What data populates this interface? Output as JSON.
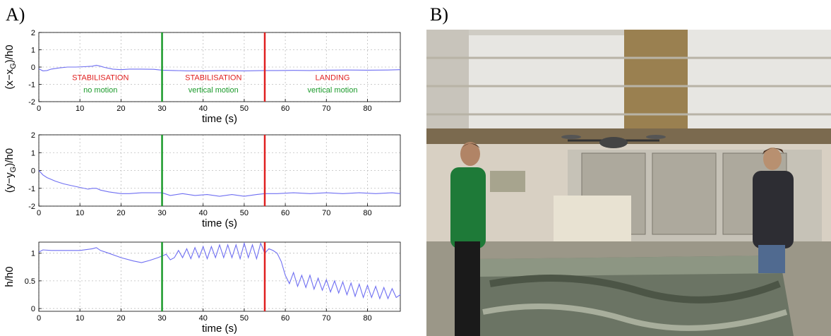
{
  "panels": {
    "a_label": "A)",
    "b_label": "B)"
  },
  "colors": {
    "signal": "#6f6ff2",
    "green_line": "#1a9a2a",
    "red_line": "#e02020",
    "phase_red": "#e02020",
    "phase_green": "#1a9a2a",
    "grid": "#bdbdbd"
  },
  "photo": {
    "description_icon": "photo-quadrotor-hall-icon"
  },
  "chart_data": [
    {
      "type": "line",
      "ylabel": "(x−x_G)/h0",
      "xlabel": "time (s)",
      "xlim": [
        0,
        88
      ],
      "ylim": [
        -2,
        2
      ],
      "xticks": [
        0,
        10,
        20,
        30,
        40,
        50,
        60,
        70,
        80
      ],
      "yticks": [
        -2,
        -1,
        0,
        1,
        2
      ],
      "grid": true,
      "vlines": [
        {
          "x": 30,
          "color": "green"
        },
        {
          "x": 55,
          "color": "red"
        }
      ],
      "annotations": [
        {
          "text": "STABILISATION",
          "color": "red",
          "x": 15,
          "y": -0.6
        },
        {
          "text": "no motion",
          "color": "green",
          "x": 15,
          "y": -1.3
        },
        {
          "text": "STABILISATION",
          "color": "red",
          "x": 42.5,
          "y": -0.6
        },
        {
          "text": "vertical motion",
          "color": "green",
          "x": 42.5,
          "y": -1.3
        },
        {
          "text": "LANDING",
          "color": "red",
          "x": 71.5,
          "y": -0.6
        },
        {
          "text": "vertical motion",
          "color": "green",
          "x": 71.5,
          "y": -1.3
        }
      ],
      "series": [
        {
          "x": [
            0,
            1,
            2,
            3,
            5,
            7,
            9,
            11,
            13,
            14,
            15,
            16,
            18,
            20,
            22,
            25,
            28,
            30,
            33,
            36,
            40,
            45,
            50,
            55,
            58,
            62,
            66,
            70,
            75,
            80,
            85,
            88
          ],
          "y": [
            -0.1,
            -0.22,
            -0.2,
            -0.12,
            -0.05,
            0.0,
            0.0,
            0.02,
            0.05,
            0.1,
            0.05,
            -0.02,
            -0.12,
            -0.15,
            -0.12,
            -0.12,
            -0.13,
            -0.18,
            -0.2,
            -0.22,
            -0.22,
            -0.2,
            -0.22,
            -0.2,
            -0.2,
            -0.19,
            -0.2,
            -0.18,
            -0.17,
            -0.18,
            -0.17,
            -0.15
          ]
        }
      ]
    },
    {
      "type": "line",
      "ylabel": "(y−y_G)/h0",
      "xlabel": "time (s)",
      "xlim": [
        0,
        88
      ],
      "ylim": [
        -2,
        2
      ],
      "xticks": [
        0,
        10,
        20,
        30,
        40,
        50,
        60,
        70,
        80
      ],
      "yticks": [
        -2,
        -1,
        0,
        1,
        2
      ],
      "grid": true,
      "vlines": [
        {
          "x": 30,
          "color": "green"
        },
        {
          "x": 55,
          "color": "red"
        }
      ],
      "series": [
        {
          "x": [
            0,
            1,
            2,
            4,
            6,
            8,
            10,
            12,
            13,
            14,
            15,
            17,
            20,
            22,
            25,
            28,
            30,
            32,
            35,
            38,
            41,
            44,
            47,
            50,
            53,
            55,
            58,
            62,
            66,
            70,
            74,
            78,
            82,
            86,
            88
          ],
          "y": [
            0.0,
            -0.25,
            -0.4,
            -0.6,
            -0.75,
            -0.85,
            -0.95,
            -1.05,
            -1.0,
            -1.0,
            -1.1,
            -1.2,
            -1.3,
            -1.3,
            -1.25,
            -1.25,
            -1.25,
            -1.4,
            -1.3,
            -1.4,
            -1.35,
            -1.45,
            -1.35,
            -1.45,
            -1.35,
            -1.3,
            -1.3,
            -1.25,
            -1.3,
            -1.25,
            -1.3,
            -1.25,
            -1.3,
            -1.25,
            -1.3
          ]
        }
      ]
    },
    {
      "type": "line",
      "ylabel": "h/h0",
      "xlabel": "time (s)",
      "xlim": [
        0,
        88
      ],
      "ylim": [
        -0.05,
        1.2
      ],
      "xticks": [
        0,
        10,
        20,
        30,
        40,
        50,
        60,
        70,
        80
      ],
      "yticks": [
        0,
        0.5,
        1
      ],
      "grid": true,
      "vlines": [
        {
          "x": 30,
          "color": "green"
        },
        {
          "x": 55,
          "color": "red"
        }
      ],
      "series": [
        {
          "x": [
            0,
            1,
            3,
            6,
            10,
            13,
            14,
            15,
            17,
            20,
            23,
            25,
            27,
            29,
            30,
            31,
            32,
            33,
            34,
            35,
            36,
            37,
            38,
            39,
            40,
            41,
            42,
            43,
            44,
            45,
            46,
            47,
            48,
            49,
            50,
            51,
            52,
            53,
            54,
            55,
            56,
            57,
            58,
            59,
            60,
            61,
            62,
            63,
            64,
            65,
            66,
            67,
            68,
            69,
            70,
            71,
            72,
            73,
            74,
            75,
            76,
            77,
            78,
            79,
            80,
            81,
            82,
            83,
            84,
            85,
            86,
            87,
            88
          ],
          "y": [
            1.02,
            1.06,
            1.05,
            1.05,
            1.05,
            1.08,
            1.1,
            1.05,
            1.0,
            0.92,
            0.86,
            0.83,
            0.87,
            0.92,
            0.95,
            0.98,
            0.88,
            0.92,
            1.05,
            0.92,
            1.08,
            0.9,
            1.1,
            0.92,
            1.12,
            0.9,
            1.12,
            0.92,
            1.15,
            0.92,
            1.15,
            0.92,
            1.15,
            0.9,
            1.18,
            0.92,
            1.15,
            0.9,
            1.18,
            1.0,
            1.08,
            1.05,
            1.0,
            0.85,
            0.6,
            0.45,
            0.65,
            0.4,
            0.6,
            0.38,
            0.6,
            0.35,
            0.55,
            0.33,
            0.52,
            0.3,
            0.5,
            0.28,
            0.48,
            0.25,
            0.46,
            0.22,
            0.44,
            0.2,
            0.42,
            0.2,
            0.4,
            0.18,
            0.38,
            0.18,
            0.36,
            0.2,
            0.25
          ]
        }
      ]
    }
  ]
}
